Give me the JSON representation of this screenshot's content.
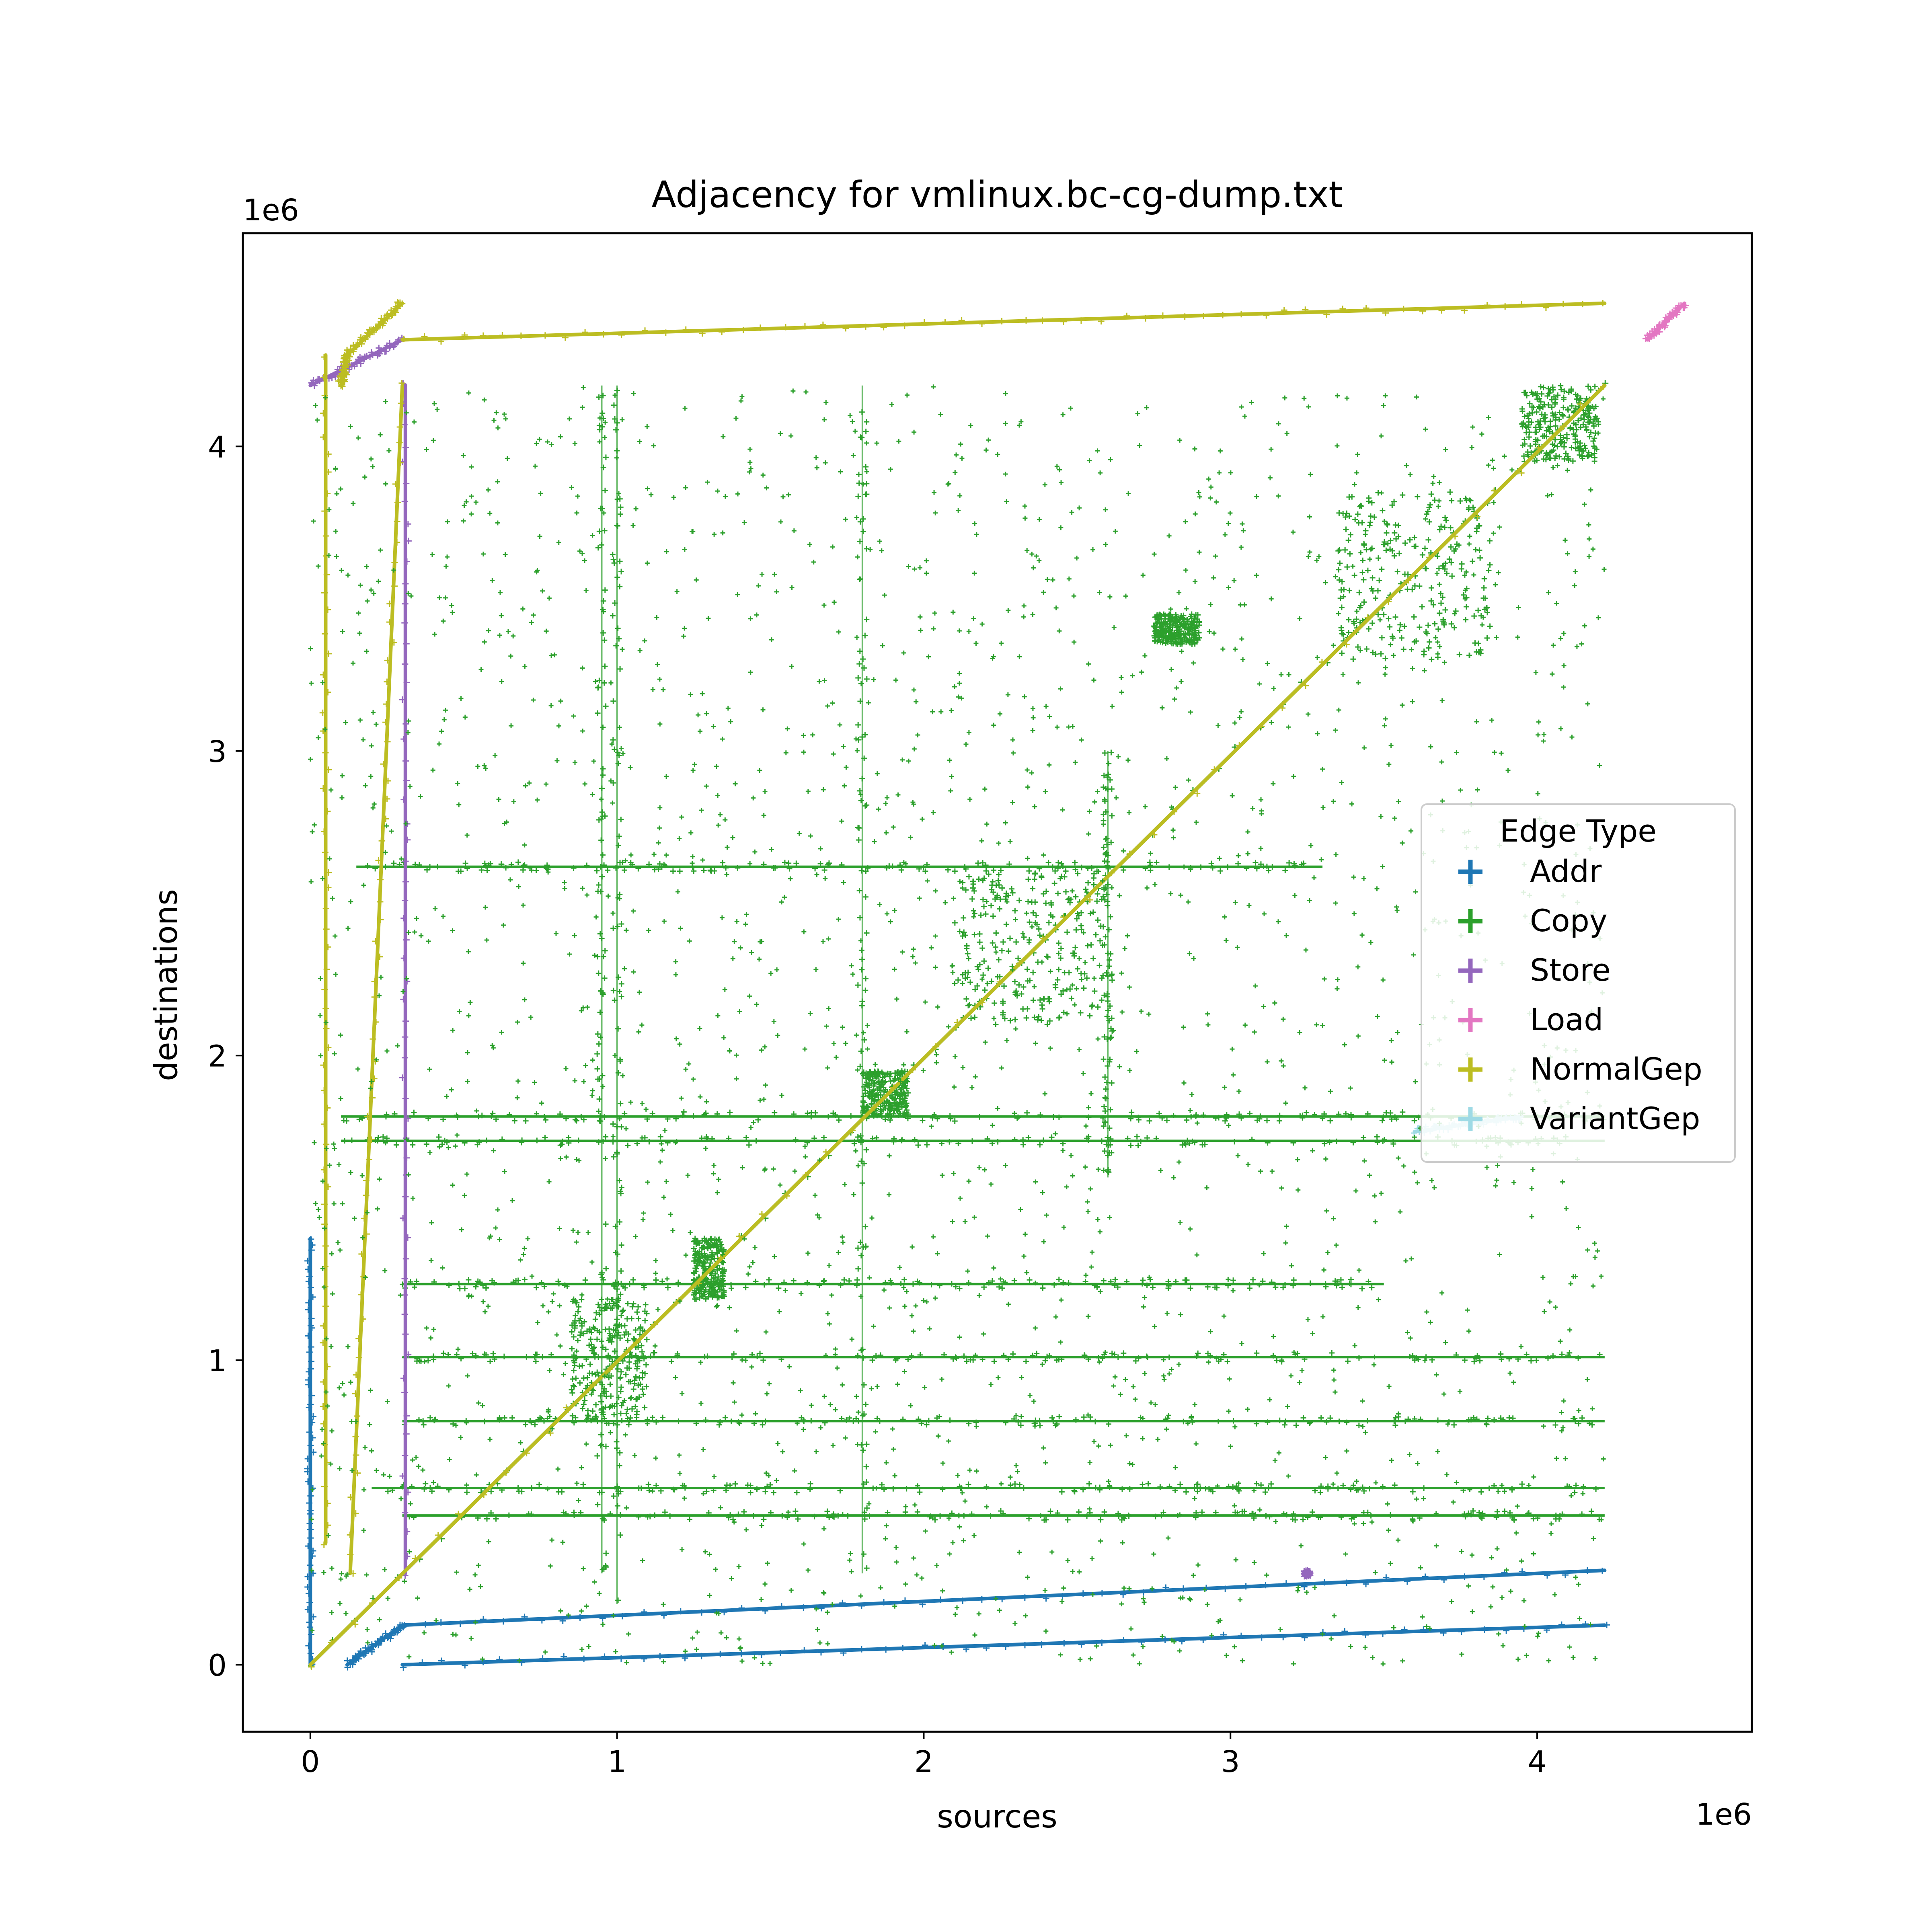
{
  "chart_data": {
    "type": "scatter",
    "title": "Adjacency for vmlinux.bc-cg-dump.txt",
    "xlabel": "sources",
    "ylabel": "destinations",
    "x_offset_label": "1e6",
    "y_offset_label": "1e6",
    "xlim": [
      -0.22,
      4.7
    ],
    "ylim": [
      -0.22,
      4.7
    ],
    "x_ticks": [
      {
        "value": 0,
        "label": "0"
      },
      {
        "value": 1,
        "label": "1"
      },
      {
        "value": 2,
        "label": "2"
      },
      {
        "value": 3,
        "label": "3"
      },
      {
        "value": 4,
        "label": "4"
      }
    ],
    "y_ticks": [
      {
        "value": 0,
        "label": "0"
      },
      {
        "value": 1,
        "label": "1"
      },
      {
        "value": 2,
        "label": "2"
      },
      {
        "value": 3,
        "label": "3"
      },
      {
        "value": 4,
        "label": "4"
      }
    ],
    "grid": false,
    "legend": {
      "title": "Edge Type",
      "position": "center-right",
      "entries": [
        {
          "label": "Addr",
          "color": "#1f77b4"
        },
        {
          "label": "Copy",
          "color": "#2ca02c"
        },
        {
          "label": "Store",
          "color": "#9467bd"
        },
        {
          "label": "Load",
          "color": "#e377c2"
        },
        {
          "label": "NormalGep",
          "color": "#bcbd22"
        },
        {
          "label": "VariantGep",
          "color": "#9edae5"
        }
      ]
    },
    "series": [
      {
        "name": "Copy",
        "color": "#2ca02c",
        "marker": "+",
        "lines": [
          [
            [
              0,
              0
            ],
            [
              4.22,
              4.2
            ]
          ]
        ],
        "hbands": [
          [
            0.58,
            0.2,
            4.22
          ],
          [
            0.49,
            0.3,
            4.22
          ],
          [
            1.01,
            0.3,
            4.22
          ],
          [
            1.72,
            0.1,
            4.22
          ],
          [
            1.8,
            0.1,
            4.22
          ],
          [
            2.62,
            0.15,
            3.3
          ],
          [
            0.8,
            0.3,
            4.22
          ],
          [
            1.25,
            0.3,
            3.5
          ]
        ],
        "vbands": [
          [
            1.0,
            0.2,
            4.2
          ],
          [
            1.8,
            0.3,
            4.2
          ],
          [
            0.95,
            0.3,
            4.2
          ],
          [
            2.6,
            1.6,
            3.0
          ]
        ],
        "blocks": [
          [
            2.1,
            2.6,
            2.1,
            2.6
          ],
          [
            3.35,
            3.85,
            3.3,
            3.85
          ],
          [
            3.95,
            4.2,
            3.95,
            4.2
          ],
          [
            0.85,
            1.1,
            0.8,
            1.2
          ],
          [
            1.25,
            1.35,
            1.2,
            1.4
          ],
          [
            1.8,
            1.95,
            1.8,
            1.95
          ],
          [
            2.75,
            2.9,
            3.35,
            3.45
          ]
        ]
      },
      {
        "name": "Addr",
        "color": "#1f77b4",
        "marker": "+",
        "lines": [
          [
            [
              0.3,
              0.0
            ],
            [
              4.22,
              0.13
            ]
          ],
          [
            [
              0.3,
              0.13
            ],
            [
              4.22,
              0.31
            ]
          ],
          [
            [
              0.12,
              0.0
            ],
            [
              0.3,
              0.13
            ]
          ],
          [
            [
              0,
              0
            ],
            [
              0,
              1.4
            ]
          ]
        ]
      },
      {
        "name": "Store",
        "color": "#9467bd",
        "marker": "+",
        "lines": [
          [
            [
              0,
              4.2
            ],
            [
              0.3,
              4.35
            ]
          ],
          [
            [
              0.31,
              0.3
            ],
            [
              0.31,
              4.2
            ]
          ],
          [
            [
              3.25,
              0.3
            ],
            [
              3.25,
              0.3
            ]
          ]
        ]
      },
      {
        "name": "Load",
        "color": "#e377c2",
        "marker": "+",
        "lines": [
          [
            [
              4.36,
              4.35
            ],
            [
              4.48,
              4.47
            ]
          ]
        ]
      },
      {
        "name": "NormalGep",
        "color": "#bcbd22",
        "marker": "+",
        "lines": [
          [
            [
              0.3,
              4.35
            ],
            [
              4.22,
              4.47
            ]
          ],
          [
            [
              0.13,
              0.3
            ],
            [
              0.3,
              4.2
            ]
          ],
          [
            [
              0.12,
              4.3
            ],
            [
              0.3,
              4.47
            ]
          ],
          [
            [
              0.1,
              4.2
            ],
            [
              0.12,
              4.3
            ]
          ],
          [
            [
              0,
              0
            ],
            [
              4.22,
              4.2
            ]
          ],
          [
            [
              0.05,
              0.4
            ],
            [
              0.05,
              4.3
            ]
          ]
        ]
      },
      {
        "name": "VariantGep",
        "color": "#9edae5",
        "marker": "+",
        "lines": [
          [
            [
              3.6,
              1.75
            ],
            [
              3.95,
              1.8
            ]
          ]
        ]
      }
    ]
  }
}
